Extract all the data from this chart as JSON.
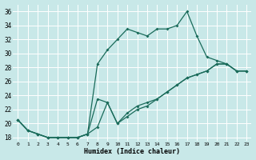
{
  "xlabel": "Humidex (Indice chaleur)",
  "xlim": [
    -0.5,
    23.5
  ],
  "ylim": [
    17.5,
    37.0
  ],
  "yticks": [
    18,
    20,
    22,
    24,
    26,
    28,
    30,
    32,
    34,
    36
  ],
  "xticks": [
    0,
    1,
    2,
    3,
    4,
    5,
    6,
    7,
    8,
    9,
    10,
    11,
    12,
    13,
    14,
    15,
    16,
    17,
    18,
    19,
    20,
    21,
    22,
    23
  ],
  "background_color": "#c8e8e8",
  "line_color": "#1a6b5a",
  "grid_color": "#ffffff",
  "line1_y": [
    20.5,
    19.0,
    18.5,
    18.0,
    18.0,
    18.0,
    18.0,
    18.5,
    28.5,
    30.5,
    32.0,
    33.5,
    33.0,
    32.5,
    33.5,
    33.5,
    34.0,
    36.0,
    32.5,
    29.5,
    29.0,
    28.5,
    27.5,
    27.5
  ],
  "line2_y": [
    20.5,
    19.0,
    18.5,
    18.0,
    18.0,
    18.0,
    18.0,
    18.5,
    19.5,
    23.0,
    20.0,
    21.5,
    22.5,
    23.0,
    23.5,
    24.5,
    25.5,
    26.5,
    27.0,
    27.5,
    28.5,
    28.5,
    27.5,
    27.5
  ],
  "line3_y": [
    20.5,
    19.0,
    18.5,
    18.0,
    18.0,
    18.0,
    18.0,
    18.5,
    23.5,
    23.0,
    20.0,
    21.0,
    22.0,
    22.5,
    23.5,
    24.5,
    25.5,
    26.5,
    27.0,
    27.5,
    28.5,
    28.5,
    27.5,
    27.5
  ]
}
